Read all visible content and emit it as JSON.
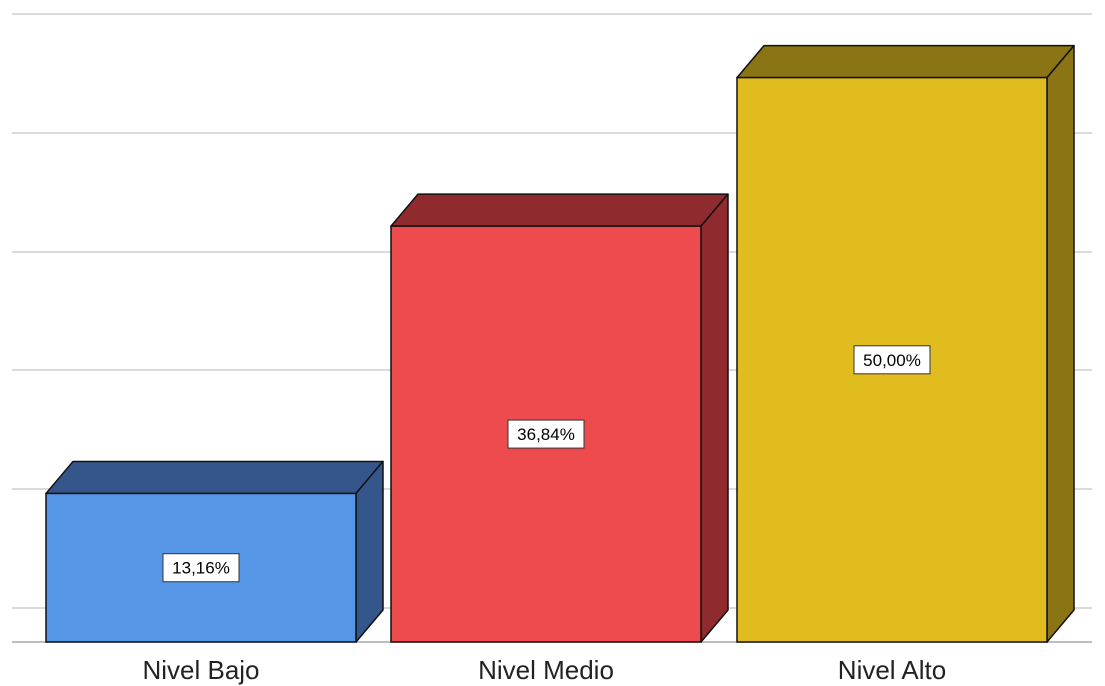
{
  "chart_data": {
    "type": "bar",
    "categories": [
      "Nivel Bajo",
      "Nivel Medio",
      "Nivel Alto"
    ],
    "values": [
      13.16,
      36.84,
      50.0
    ],
    "data_labels": [
      "13,16%",
      "36,84%",
      "50,00%"
    ],
    "colors": [
      "#5596e6",
      "#ee4b4e",
      "#e0bc1f"
    ],
    "side_colors": [
      "#34568a",
      "#8f2b2e",
      "#8a7413"
    ],
    "ylim": [
      0,
      52.8
    ],
    "grid": true,
    "style": "3d-bar"
  }
}
